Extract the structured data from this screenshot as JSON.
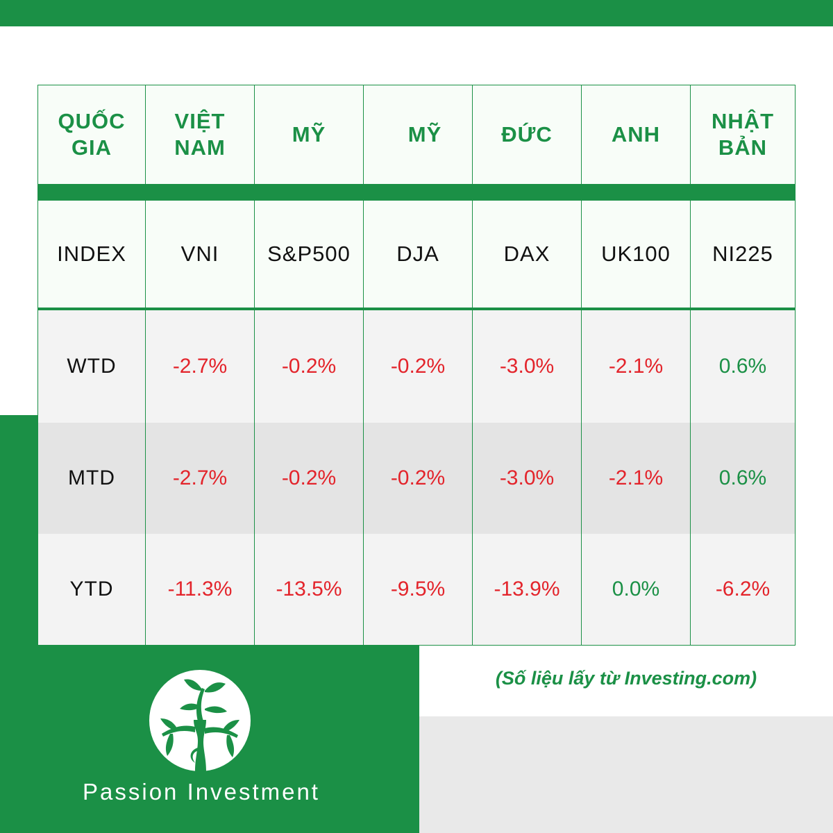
{
  "table": {
    "header": {
      "label": "QUỐC GIA",
      "countries": [
        "VIỆT NAM",
        "MỸ",
        "MỸ",
        "ĐỨC",
        "ANH",
        "NHẬT BẢN"
      ]
    },
    "index_row": {
      "label": "INDEX",
      "values": [
        "VNI",
        "S&P500",
        "DJA",
        "DAX",
        "UK100",
        "NI225"
      ]
    },
    "rows": [
      {
        "label": "WTD",
        "values": [
          "-2.7%",
          "-0.2%",
          "-0.2%",
          "-3.0%",
          "-2.1%",
          "0.6%"
        ]
      },
      {
        "label": "MTD",
        "values": [
          "-2.7%",
          "-0.2%",
          "-0.2%",
          "-3.0%",
          "-2.1%",
          "0.6%"
        ]
      },
      {
        "label": "YTD",
        "values": [
          "-11.3%",
          "-13.5%",
          "-9.5%",
          "-13.9%",
          "0.0%",
          "-6.2%"
        ]
      }
    ]
  },
  "source_note": "(Số liệu lấy từ Investing.com)",
  "brand": {
    "logo_icon": "tree-in-circle-icon",
    "name": "Passion Investment"
  },
  "colors": {
    "brand_green": "#1b9046",
    "negative_red": "#e3242b",
    "positive_green": "#1b9046"
  }
}
